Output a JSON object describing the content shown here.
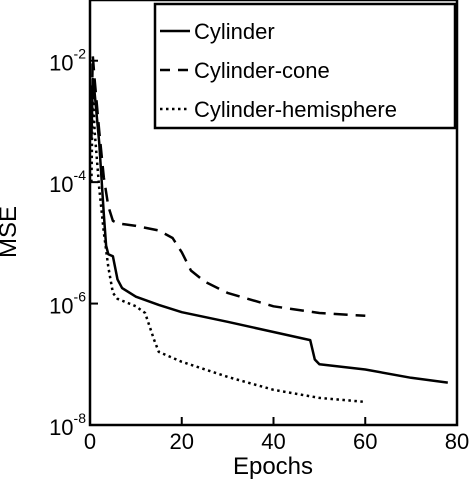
{
  "chart_data": {
    "type": "line",
    "title": "",
    "xlabel": "Epochs",
    "ylabel": "MSE",
    "xlim": [
      0,
      80
    ],
    "ylim": [
      1e-08,
      0.1
    ],
    "yscale": "log",
    "xticks": [
      0,
      20,
      40,
      60,
      80
    ],
    "yticks": [
      {
        "value": 1e-08,
        "base": "10",
        "exp": "-8"
      },
      {
        "value": 1e-06,
        "base": "10",
        "exp": "-6"
      },
      {
        "value": 0.0001,
        "base": "10",
        "exp": "-4"
      },
      {
        "value": 0.01,
        "base": "10",
        "exp": "-2"
      }
    ],
    "grid": false,
    "legend_position": "top-right",
    "series": [
      {
        "name": "Cylinder",
        "style": "solid",
        "x": [
          0.3,
          0.6,
          1,
          2,
          3,
          3.5,
          4,
          5,
          6,
          7,
          10,
          15,
          20,
          30,
          40,
          48,
          49,
          50,
          60,
          70,
          78
        ],
        "y": [
          0.0005,
          0.005,
          0.003,
          0.00045,
          3e-05,
          9e-06,
          6.5e-06,
          6e-06,
          2.5e-06,
          1.8e-06,
          1.3e-06,
          9.5e-07,
          7.2e-07,
          5e-07,
          3.4e-07,
          2.5e-07,
          1.2e-07,
          1e-07,
          8.2e-08,
          6e-08,
          5e-08
        ]
      },
      {
        "name": "Cylinder-cone",
        "style": "dashed",
        "x": [
          0.3,
          0.6,
          1,
          2,
          3,
          4,
          5,
          6,
          10,
          15,
          18,
          20,
          22,
          25,
          30,
          40,
          50,
          60
        ],
        "y": [
          0.001,
          0.012,
          0.005,
          0.0007,
          0.00012,
          4e-05,
          2.3e-05,
          2.1e-05,
          1.9e-05,
          1.6e-05,
          1.2e-05,
          7e-06,
          3.5e-06,
          2.3e-06,
          1.5e-06,
          9e-07,
          7e-07,
          6.3e-07
        ]
      },
      {
        "name": "Cylinder-hemisphere",
        "style": "dotted",
        "x": [
          0.3,
          0.6,
          1,
          2,
          3,
          4,
          5,
          6,
          10,
          12,
          14,
          15,
          20,
          30,
          40,
          50,
          60
        ],
        "y": [
          0.0001,
          0.0035,
          0.0007,
          8e-05,
          1.5e-05,
          4e-06,
          1.5e-06,
          1.2e-06,
          9e-07,
          7e-07,
          2.5e-07,
          1.6e-07,
          1.1e-07,
          6.2e-08,
          3.8e-08,
          2.8e-08,
          2.4e-08
        ]
      }
    ]
  }
}
